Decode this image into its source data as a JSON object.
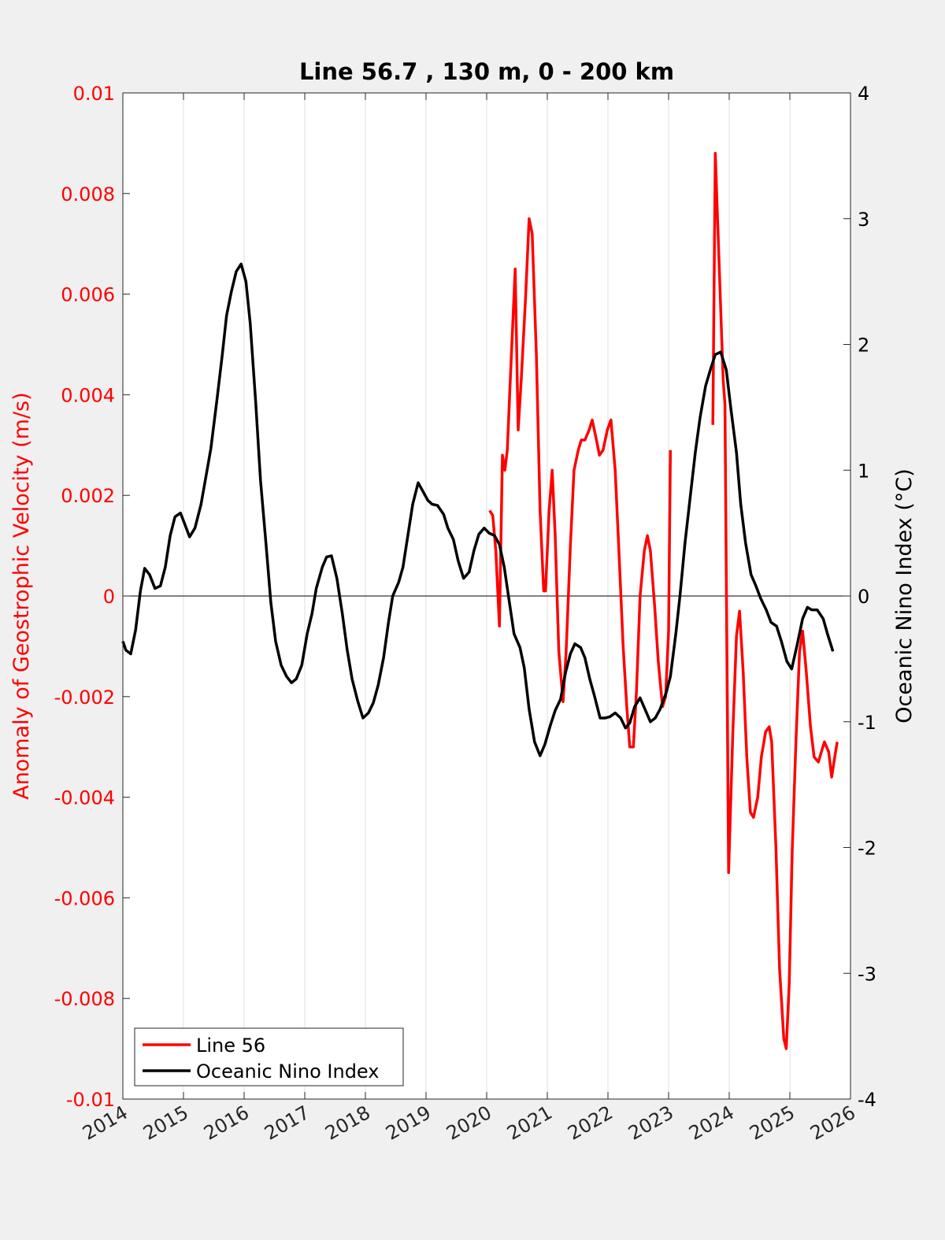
{
  "chart_data": {
    "type": "line",
    "title": "Line 56.7 , 130 m, 0 - 200 km",
    "xlabel": "",
    "ylabel_left": "Anomaly of Geostrophic Velocity (m/s)",
    "ylabel_right": "Oceanic Nino Index (°C)",
    "xlim": [
      2014,
      2026
    ],
    "ylim_left": [
      -0.01,
      0.01
    ],
    "ylim_right": [
      -4,
      4
    ],
    "x_ticks": [
      "2014",
      "2015",
      "2016",
      "2017",
      "2018",
      "2019",
      "2020",
      "2021",
      "2022",
      "2023",
      "2024",
      "2025",
      "2026"
    ],
    "y_left_ticks": [
      "0.01",
      "0.008",
      "0.006",
      "0.004",
      "0.002",
      "0",
      "-0.002",
      "-0.004",
      "-0.006",
      "-0.008",
      "-0.01"
    ],
    "y_right_ticks": [
      "4",
      "3",
      "2",
      "1",
      "0",
      "-1",
      "-2",
      "-3",
      "-4"
    ],
    "grid": "vertical",
    "legend_position": "bottom-left",
    "colors": {
      "line56": "#ff0000",
      "oni": "#000000",
      "left_axis": "#ff0000",
      "right_axis": "#000000"
    },
    "series": [
      {
        "name": "Line 56",
        "axis": "left",
        "points": [
          [
            2020.05,
            0.0017
          ],
          [
            2020.1,
            0.0016
          ],
          [
            2020.15,
            0.0009
          ],
          [
            2020.21,
            -0.0006
          ],
          [
            2020.26,
            0.0028
          ],
          [
            2020.3,
            0.0025
          ],
          [
            2020.34,
            0.0029
          ],
          [
            2020.39,
            0.0043
          ],
          [
            2020.47,
            0.0065
          ],
          [
            2020.52,
            0.0033
          ],
          [
            2020.57,
            0.0043
          ],
          [
            2020.64,
            0.0059
          ],
          [
            2020.7,
            0.0075
          ],
          [
            2020.75,
            0.0072
          ],
          [
            2020.82,
            0.0048
          ],
          [
            2020.88,
            0.0017
          ],
          [
            2020.94,
            0.0001
          ],
          [
            2020.97,
            0.0001
          ],
          [
            2021.03,
            0.0017
          ],
          [
            2021.08,
            0.0025
          ],
          [
            2021.13,
            0.0012
          ],
          [
            2021.19,
            -0.0011
          ],
          [
            2021.26,
            -0.0021
          ],
          [
            2021.31,
            -0.0011
          ],
          [
            2021.38,
            0.001
          ],
          [
            2021.44,
            0.0025
          ],
          [
            2021.51,
            0.0029
          ],
          [
            2021.56,
            0.0031
          ],
          [
            2021.62,
            0.0031
          ],
          [
            2021.69,
            0.0033
          ],
          [
            2021.74,
            0.0035
          ],
          [
            2021.81,
            0.0031
          ],
          [
            2021.86,
            0.0028
          ],
          [
            2021.92,
            0.0029
          ],
          [
            2021.99,
            0.0033
          ],
          [
            2022.05,
            0.0035
          ],
          [
            2022.12,
            0.0025
          ],
          [
            2022.18,
            0.0009
          ],
          [
            2022.25,
            -0.001
          ],
          [
            2022.31,
            -0.0022
          ],
          [
            2022.36,
            -0.003
          ],
          [
            2022.42,
            -0.003
          ],
          [
            2022.47,
            -0.0019
          ],
          [
            2022.53,
            0
          ],
          [
            2022.6,
            0.0009
          ],
          [
            2022.65,
            0.0012
          ],
          [
            2022.7,
            0.0009
          ],
          [
            2022.77,
            -0.0002
          ],
          [
            2022.83,
            -0.0013
          ],
          [
            2022.9,
            -0.0022
          ],
          [
            2022.95,
            -0.002
          ],
          [
            2023.0,
            -0.0007
          ],
          [
            2023.03,
            0.0029
          ],
          null,
          [
            2023.73,
            0.0034
          ],
          [
            2023.77,
            0.0088
          ],
          [
            2023.9,
            0.0043
          ],
          [
            2023.93,
            0.0038
          ],
          [
            2023.99,
            -0.0055
          ],
          [
            2024.06,
            -0.0027
          ],
          [
            2024.12,
            -0.0008
          ],
          [
            2024.17,
            -0.0003
          ],
          [
            2024.23,
            -0.0015
          ],
          [
            2024.29,
            -0.0032
          ],
          [
            2024.35,
            -0.0043
          ],
          [
            2024.4,
            -0.0044
          ],
          [
            2024.47,
            -0.004
          ],
          [
            2024.53,
            -0.0032
          ],
          [
            2024.6,
            -0.0027
          ],
          [
            2024.66,
            -0.0026
          ],
          [
            2024.7,
            -0.0029
          ],
          [
            2024.77,
            -0.005
          ],
          [
            2024.83,
            -0.0074
          ],
          [
            2024.9,
            -0.0088
          ],
          [
            2024.94,
            -0.009
          ],
          [
            2024.99,
            -0.0077
          ],
          [
            2025.04,
            -0.005
          ],
          [
            2025.1,
            -0.0029
          ],
          [
            2025.16,
            -0.0011
          ],
          [
            2025.21,
            -0.0007
          ],
          [
            2025.27,
            -0.0015
          ],
          [
            2025.34,
            -0.0026
          ],
          [
            2025.4,
            -0.0032
          ],
          [
            2025.47,
            -0.0033
          ],
          [
            2025.52,
            -0.0031
          ],
          [
            2025.57,
            -0.0029
          ],
          [
            2025.64,
            -0.0031
          ],
          [
            2025.69,
            -0.0036
          ],
          [
            2025.74,
            -0.0032
          ],
          [
            2025.78,
            -0.0029
          ]
        ]
      },
      {
        "name": "Oceanic Nino Index",
        "axis": "right",
        "points": [
          [
            2014.0,
            -0.36
          ],
          [
            2014.05,
            -0.43
          ],
          [
            2014.13,
            -0.46
          ],
          [
            2014.21,
            -0.27
          ],
          [
            2014.29,
            0.04
          ],
          [
            2014.36,
            0.22
          ],
          [
            2014.44,
            0.17
          ],
          [
            2014.53,
            0.06
          ],
          [
            2014.62,
            0.08
          ],
          [
            2014.7,
            0.23
          ],
          [
            2014.78,
            0.48
          ],
          [
            2014.86,
            0.63
          ],
          [
            2014.95,
            0.66
          ],
          [
            2015.03,
            0.56
          ],
          [
            2015.1,
            0.47
          ],
          [
            2015.19,
            0.54
          ],
          [
            2015.29,
            0.73
          ],
          [
            2015.36,
            0.92
          ],
          [
            2015.45,
            1.17
          ],
          [
            2015.55,
            1.55
          ],
          [
            2015.64,
            1.92
          ],
          [
            2015.71,
            2.23
          ],
          [
            2015.79,
            2.42
          ],
          [
            2015.87,
            2.58
          ],
          [
            2015.95,
            2.64
          ],
          [
            2016.03,
            2.5
          ],
          [
            2016.1,
            2.17
          ],
          [
            2016.19,
            1.55
          ],
          [
            2016.27,
            0.92
          ],
          [
            2016.36,
            0.42
          ],
          [
            2016.44,
            -0.05
          ],
          [
            2016.52,
            -0.36
          ],
          [
            2016.61,
            -0.55
          ],
          [
            2016.7,
            -0.64
          ],
          [
            2016.78,
            -0.69
          ],
          [
            2016.86,
            -0.66
          ],
          [
            2016.95,
            -0.55
          ],
          [
            2017.04,
            -0.3
          ],
          [
            2017.12,
            -0.14
          ],
          [
            2017.19,
            0.06
          ],
          [
            2017.29,
            0.23
          ],
          [
            2017.36,
            0.31
          ],
          [
            2017.44,
            0.32
          ],
          [
            2017.53,
            0.14
          ],
          [
            2017.62,
            -0.14
          ],
          [
            2017.7,
            -0.43
          ],
          [
            2017.78,
            -0.66
          ],
          [
            2017.87,
            -0.83
          ],
          [
            2017.96,
            -0.97
          ],
          [
            2018.05,
            -0.93
          ],
          [
            2018.13,
            -0.85
          ],
          [
            2018.21,
            -0.71
          ],
          [
            2018.3,
            -0.49
          ],
          [
            2018.38,
            -0.21
          ],
          [
            2018.45,
            0
          ],
          [
            2018.55,
            0.11
          ],
          [
            2018.62,
            0.23
          ],
          [
            2018.7,
            0.48
          ],
          [
            2018.78,
            0.73
          ],
          [
            2018.87,
            0.9
          ],
          [
            2018.95,
            0.83
          ],
          [
            2019.03,
            0.76
          ],
          [
            2019.1,
            0.73
          ],
          [
            2019.19,
            0.72
          ],
          [
            2019.29,
            0.65
          ],
          [
            2019.36,
            0.54
          ],
          [
            2019.45,
            0.45
          ],
          [
            2019.53,
            0.28
          ],
          [
            2019.62,
            0.14
          ],
          [
            2019.71,
            0.19
          ],
          [
            2019.79,
            0.36
          ],
          [
            2019.87,
            0.49
          ],
          [
            2019.96,
            0.54
          ],
          [
            2020.04,
            0.5
          ],
          [
            2020.13,
            0.48
          ],
          [
            2020.21,
            0.41
          ],
          [
            2020.29,
            0.23
          ],
          [
            2020.38,
            -0.07
          ],
          [
            2020.45,
            -0.3
          ],
          [
            2020.55,
            -0.41
          ],
          [
            2020.62,
            -0.57
          ],
          [
            2020.7,
            -0.9
          ],
          [
            2020.79,
            -1.16
          ],
          [
            2020.88,
            -1.27
          ],
          [
            2020.96,
            -1.18
          ],
          [
            2021.05,
            -1.03
          ],
          [
            2021.13,
            -0.91
          ],
          [
            2021.22,
            -0.82
          ],
          [
            2021.3,
            -0.61
          ],
          [
            2021.38,
            -0.46
          ],
          [
            2021.455,
            -0.38
          ],
          [
            2021.55,
            -0.41
          ],
          [
            2021.62,
            -0.49
          ],
          [
            2021.7,
            -0.66
          ],
          [
            2021.78,
            -0.8
          ],
          [
            2021.87,
            -0.97
          ],
          [
            2021.95,
            -0.97
          ],
          [
            2022.03,
            -0.96
          ],
          [
            2022.12,
            -0.93
          ],
          [
            2022.21,
            -0.97
          ],
          [
            2022.29,
            -1.05
          ],
          [
            2022.36,
            -1.01
          ],
          [
            2022.44,
            -0.88
          ],
          [
            2022.53,
            -0.81
          ],
          [
            2022.61,
            -0.9
          ],
          [
            2022.7,
            -1.0
          ],
          [
            2022.78,
            -0.97
          ],
          [
            2022.86,
            -0.9
          ],
          [
            2022.96,
            -0.77
          ],
          [
            2023.03,
            -0.64
          ],
          [
            2023.12,
            -0.3
          ],
          [
            2023.19,
            0.01
          ],
          [
            2023.27,
            0.42
          ],
          [
            2023.36,
            0.8
          ],
          [
            2023.44,
            1.14
          ],
          [
            2023.52,
            1.42
          ],
          [
            2023.61,
            1.67
          ],
          [
            2023.69,
            1.8
          ],
          [
            2023.77,
            1.92
          ],
          [
            2023.86,
            1.94
          ],
          [
            2023.95,
            1.8
          ],
          [
            2024.03,
            1.48
          ],
          [
            2024.12,
            1.14
          ],
          [
            2024.19,
            0.73
          ],
          [
            2024.27,
            0.42
          ],
          [
            2024.36,
            0.17
          ],
          [
            2024.44,
            0.08
          ],
          [
            2024.52,
            -0.02
          ],
          [
            2024.61,
            -0.11
          ],
          [
            2024.69,
            -0.21
          ],
          [
            2024.78,
            -0.24
          ],
          [
            2024.86,
            -0.36
          ],
          [
            2024.95,
            -0.52
          ],
          [
            2025.03,
            -0.58
          ],
          [
            2025.12,
            -0.39
          ],
          [
            2025.21,
            -0.18
          ],
          [
            2025.29,
            -0.09
          ],
          [
            2025.36,
            -0.11
          ],
          [
            2025.45,
            -0.11
          ],
          [
            2025.55,
            -0.18
          ],
          [
            2025.62,
            -0.3
          ],
          [
            2025.71,
            -0.44
          ]
        ]
      }
    ]
  }
}
